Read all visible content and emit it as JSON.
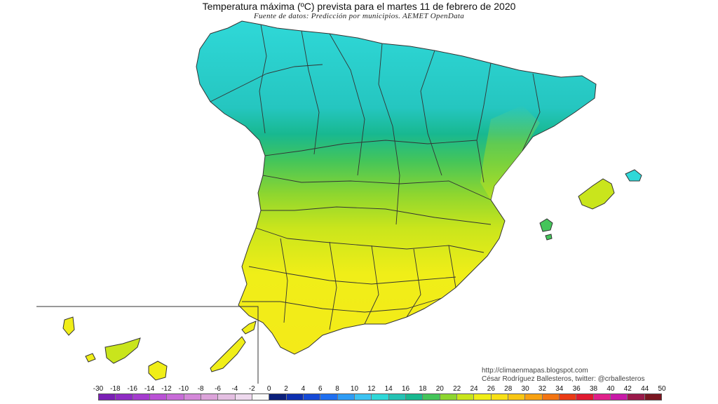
{
  "title": "Temperatura máxima (ºC) prevista para el martes 11 de febrero de 2020",
  "subtitle": "Fuente de datos: Predicción por municipios. AEMET OpenData",
  "credits": {
    "line1": "http://climaenmapas.blogspot.com",
    "line2": "César Rodríguez Ballesteros, twitter: @crballesteros"
  },
  "legend": {
    "labels": [
      "-30",
      "-18",
      "-16",
      "-14",
      "-12",
      "-10",
      "-8",
      "-6",
      "-4",
      "-2",
      "0",
      "2",
      "4",
      "6",
      "8",
      "10",
      "12",
      "14",
      "16",
      "18",
      "20",
      "22",
      "24",
      "26",
      "28",
      "30",
      "32",
      "34",
      "36",
      "38",
      "40",
      "42",
      "44",
      "50"
    ],
    "colors": [
      "#7a1fb5",
      "#8f2cc4",
      "#a53ccf",
      "#ba52d6",
      "#c86bd8",
      "#d488d9",
      "#dca3da",
      "#e4bfe2",
      "#eed9ee",
      "#fafafa",
      "#0a1f7a",
      "#0d2fb0",
      "#1549d6",
      "#1f6ff0",
      "#2e9cf5",
      "#3cc3f2",
      "#2fd8d8",
      "#25c2b4",
      "#18b890",
      "#44c55a",
      "#8ed62f",
      "#c9e51c",
      "#f0ee18",
      "#f8e016",
      "#f8c614",
      "#f7a112",
      "#f37412",
      "#ea3a14",
      "#e01a30",
      "#e0208a",
      "#c81aa8",
      "#9a1a4a",
      "#7a1620"
    ]
  },
  "map": {
    "region": "Península Ibérica (España), Baleares y Canarias",
    "zones": [
      {
        "name": "norte-cantabrico",
        "temp_range": "12-16",
        "color": "#2fd8d8"
      },
      {
        "name": "meseta-norte",
        "temp_range": "14-18",
        "color": "#18b890"
      },
      {
        "name": "centro",
        "temp_range": "18-22",
        "color": "#8ed62f"
      },
      {
        "name": "sur-andalucia",
        "temp_range": "22-24",
        "color": "#f0ee18"
      },
      {
        "name": "levante",
        "temp_range": "20-22",
        "color": "#8ed62f"
      },
      {
        "name": "baleares",
        "temp_range": "18-22",
        "color": "#c9e51c"
      },
      {
        "name": "canarias",
        "temp_range": "22-24",
        "color": "#f0ee18"
      }
    ]
  }
}
